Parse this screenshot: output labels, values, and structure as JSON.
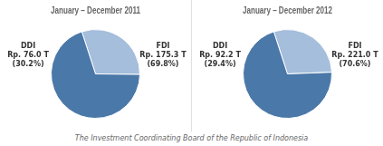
{
  "chart_data": [
    {
      "type": "pie",
      "title": "January – December 2011",
      "categories": [
        "DDI",
        "FDI"
      ],
      "values": [
        30.2,
        69.8
      ],
      "value_labels": [
        "(30.2%)",
        "(69.8%)"
      ],
      "amounts": [
        76.0,
        175.3
      ],
      "amount_labels": [
        "Rp. 76.0 T",
        "Rp. 175.3 T"
      ],
      "colors": [
        "#a4bedb",
        "#4a78a8"
      ],
      "data_labels": true,
      "legend": false
    },
    {
      "type": "pie",
      "title": "January – December 2012",
      "categories": [
        "DDI",
        "FDI"
      ],
      "values": [
        29.4,
        70.6
      ],
      "value_labels": [
        "(29.4%)",
        "(70.6%)"
      ],
      "amounts": [
        92.2,
        221.0
      ],
      "amount_labels": [
        "Rp. 92.2 T",
        "Rp. 221.0 T"
      ],
      "colors": [
        "#a4bedb",
        "#4a78a8"
      ],
      "data_labels": true,
      "legend": false
    }
  ],
  "footer": "The Investment Coordinating Board of the Republic of Indonesia"
}
